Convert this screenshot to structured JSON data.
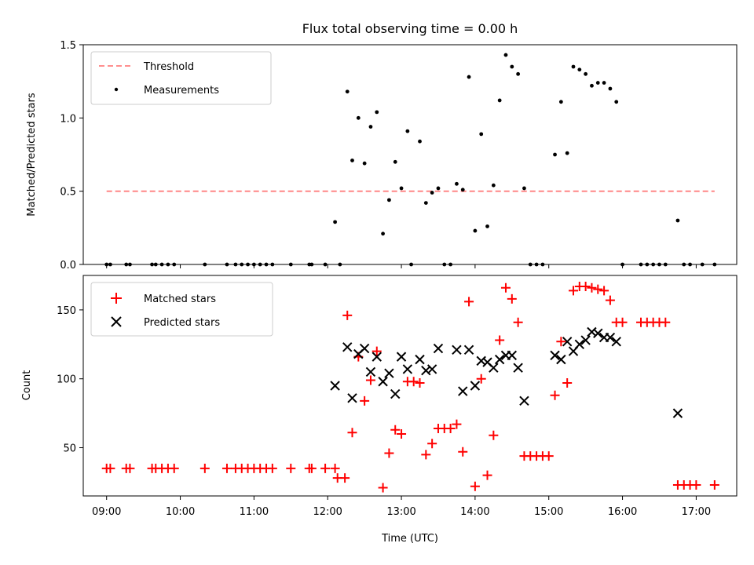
{
  "chart_data": [
    {
      "type": "scatter",
      "title": "Flux total observing time = 0.00 h",
      "xlabel": "",
      "ylabel": "Matched/Predicted stars",
      "ylim": [
        0,
        1.5
      ],
      "yticks": [
        "0.0",
        "0.5",
        "1.0",
        "1.5"
      ],
      "xtick_labels_visible": false,
      "legend_position": "top-left",
      "legend": [
        "Threshold",
        "Measurements"
      ],
      "colors": {
        "threshold": "#ff7f7f",
        "measurements": "#000000"
      },
      "threshold": {
        "name": "Threshold",
        "value": 0.5,
        "x_start": "09:00",
        "x_end": "17:15"
      },
      "series": [
        {
          "name": "Measurements",
          "points": [
            [
              "09:00",
              0
            ],
            [
              "09:03",
              0
            ],
            [
              "09:16",
              0
            ],
            [
              "09:19",
              0
            ],
            [
              "09:37",
              0
            ],
            [
              "09:40",
              0
            ],
            [
              "09:45",
              0
            ],
            [
              "09:50",
              0
            ],
            [
              "09:55",
              0
            ],
            [
              "10:20",
              0
            ],
            [
              "10:38",
              0
            ],
            [
              "10:45",
              0
            ],
            [
              "10:50",
              0
            ],
            [
              "10:55",
              0
            ],
            [
              "11:00",
              0
            ],
            [
              "11:05",
              0
            ],
            [
              "11:10",
              0
            ],
            [
              "11:15",
              0
            ],
            [
              "11:30",
              0
            ],
            [
              "11:45",
              0
            ],
            [
              "11:47",
              0
            ],
            [
              "11:58",
              0
            ],
            [
              "12:06",
              0.29
            ],
            [
              "12:10",
              0
            ],
            [
              "12:16",
              1.18
            ],
            [
              "12:20",
              0.71
            ],
            [
              "12:25",
              1.0
            ],
            [
              "12:30",
              0.69
            ],
            [
              "12:35",
              0.94
            ],
            [
              "12:40",
              1.04
            ],
            [
              "12:45",
              0.21
            ],
            [
              "12:50",
              0.44
            ],
            [
              "12:55",
              0.7
            ],
            [
              "13:00",
              0.52
            ],
            [
              "13:05",
              0.91
            ],
            [
              "13:08",
              0
            ],
            [
              "13:15",
              0.84
            ],
            [
              "13:20",
              0.42
            ],
            [
              "13:25",
              0.49
            ],
            [
              "13:30",
              0.52
            ],
            [
              "13:35",
              0
            ],
            [
              "13:40",
              0
            ],
            [
              "13:45",
              0.55
            ],
            [
              "13:50",
              0.51
            ],
            [
              "13:55",
              1.28
            ],
            [
              "14:00",
              0.23
            ],
            [
              "14:05",
              0.89
            ],
            [
              "14:10",
              0.26
            ],
            [
              "14:15",
              0.54
            ],
            [
              "14:20",
              1.12
            ],
            [
              "14:25",
              1.43
            ],
            [
              "14:30",
              1.35
            ],
            [
              "14:35",
              1.3
            ],
            [
              "14:40",
              0.52
            ],
            [
              "14:45",
              0
            ],
            [
              "14:50",
              0
            ],
            [
              "14:55",
              0
            ],
            [
              "15:05",
              0.75
            ],
            [
              "15:10",
              1.11
            ],
            [
              "15:15",
              0.76
            ],
            [
              "15:20",
              1.35
            ],
            [
              "15:25",
              1.33
            ],
            [
              "15:30",
              1.3
            ],
            [
              "15:35",
              1.22
            ],
            [
              "15:40",
              1.24
            ],
            [
              "15:45",
              1.24
            ],
            [
              "15:50",
              1.2
            ],
            [
              "15:55",
              1.11
            ],
            [
              "16:00",
              0
            ],
            [
              "16:15",
              0
            ],
            [
              "16:20",
              0
            ],
            [
              "16:25",
              0
            ],
            [
              "16:30",
              0
            ],
            [
              "16:35",
              0
            ],
            [
              "16:45",
              0.3
            ],
            [
              "16:50",
              0
            ],
            [
              "16:55",
              0
            ],
            [
              "17:05",
              0
            ],
            [
              "17:15",
              0
            ]
          ]
        }
      ]
    },
    {
      "type": "scatter",
      "title": "",
      "xlabel": "Time (UTC)",
      "ylabel": "Count",
      "ylim": [
        15,
        175
      ],
      "yticks": [
        "50",
        "100",
        "150"
      ],
      "xticks": [
        "09:00",
        "10:00",
        "11:00",
        "12:00",
        "13:00",
        "14:00",
        "15:00",
        "16:00",
        "17:00"
      ],
      "legend_position": "top-left",
      "legend": [
        "Matched stars",
        "Predicted stars"
      ],
      "colors": {
        "matched": "#ff0000",
        "predicted": "#000000"
      },
      "series": [
        {
          "name": "Matched stars",
          "points": [
            [
              "09:00",
              35
            ],
            [
              "09:03",
              35
            ],
            [
              "09:16",
              35
            ],
            [
              "09:19",
              35
            ],
            [
              "09:37",
              35
            ],
            [
              "09:40",
              35
            ],
            [
              "09:45",
              35
            ],
            [
              "09:50",
              35
            ],
            [
              "09:55",
              35
            ],
            [
              "10:20",
              35
            ],
            [
              "10:38",
              35
            ],
            [
              "10:45",
              35
            ],
            [
              "10:50",
              35
            ],
            [
              "10:55",
              35
            ],
            [
              "11:00",
              35
            ],
            [
              "11:05",
              35
            ],
            [
              "11:10",
              35
            ],
            [
              "11:15",
              35
            ],
            [
              "11:30",
              35
            ],
            [
              "11:45",
              35
            ],
            [
              "11:47",
              35
            ],
            [
              "11:58",
              35
            ],
            [
              "12:06",
              35
            ],
            [
              "12:08",
              28
            ],
            [
              "12:14",
              28
            ],
            [
              "12:16",
              146
            ],
            [
              "12:20",
              61
            ],
            [
              "12:25",
              116
            ],
            [
              "12:30",
              84
            ],
            [
              "12:35",
              99
            ],
            [
              "12:40",
              120
            ],
            [
              "12:45",
              21
            ],
            [
              "12:50",
              46
            ],
            [
              "12:55",
              63
            ],
            [
              "13:00",
              60
            ],
            [
              "13:05",
              98
            ],
            [
              "13:10",
              98
            ],
            [
              "13:15",
              97
            ],
            [
              "13:20",
              45
            ],
            [
              "13:25",
              53
            ],
            [
              "13:30",
              64
            ],
            [
              "13:35",
              64
            ],
            [
              "13:40",
              64
            ],
            [
              "13:45",
              67
            ],
            [
              "13:50",
              47
            ],
            [
              "13:55",
              156
            ],
            [
              "14:00",
              22
            ],
            [
              "14:05",
              100
            ],
            [
              "14:10",
              30
            ],
            [
              "14:15",
              59
            ],
            [
              "14:20",
              128
            ],
            [
              "14:25",
              166
            ],
            [
              "14:30",
              158
            ],
            [
              "14:35",
              141
            ],
            [
              "14:40",
              44
            ],
            [
              "14:45",
              44
            ],
            [
              "14:50",
              44
            ],
            [
              "14:55",
              44
            ],
            [
              "15:00",
              44
            ],
            [
              "15:05",
              88
            ],
            [
              "15:10",
              127
            ],
            [
              "15:15",
              97
            ],
            [
              "15:20",
              164
            ],
            [
              "15:25",
              167
            ],
            [
              "15:30",
              167
            ],
            [
              "15:35",
              166
            ],
            [
              "15:40",
              165
            ],
            [
              "15:45",
              164
            ],
            [
              "15:50",
              157
            ],
            [
              "15:55",
              141
            ],
            [
              "16:00",
              141
            ],
            [
              "16:15",
              141
            ],
            [
              "16:20",
              141
            ],
            [
              "16:25",
              141
            ],
            [
              "16:30",
              141
            ],
            [
              "16:35",
              141
            ],
            [
              "16:45",
              23
            ],
            [
              "16:50",
              23
            ],
            [
              "16:55",
              23
            ],
            [
              "17:00",
              23
            ],
            [
              "17:15",
              23
            ]
          ]
        },
        {
          "name": "Predicted stars",
          "points": [
            [
              "12:06",
              95
            ],
            [
              "12:16",
              123
            ],
            [
              "12:20",
              86
            ],
            [
              "12:25",
              118
            ],
            [
              "12:30",
              122
            ],
            [
              "12:35",
              105
            ],
            [
              "12:40",
              116
            ],
            [
              "12:45",
              98
            ],
            [
              "12:50",
              104
            ],
            [
              "12:55",
              89
            ],
            [
              "13:00",
              116
            ],
            [
              "13:05",
              107
            ],
            [
              "13:15",
              114
            ],
            [
              "13:20",
              106
            ],
            [
              "13:25",
              107
            ],
            [
              "13:30",
              122
            ],
            [
              "13:45",
              121
            ],
            [
              "13:50",
              91
            ],
            [
              "13:55",
              121
            ],
            [
              "14:00",
              95
            ],
            [
              "14:05",
              113
            ],
            [
              "14:10",
              112
            ],
            [
              "14:15",
              108
            ],
            [
              "14:20",
              114
            ],
            [
              "14:25",
              117
            ],
            [
              "14:30",
              117
            ],
            [
              "14:35",
              108
            ],
            [
              "14:40",
              84
            ],
            [
              "15:05",
              117
            ],
            [
              "15:10",
              114
            ],
            [
              "15:15",
              127
            ],
            [
              "15:20",
              120
            ],
            [
              "15:25",
              125
            ],
            [
              "15:30",
              128
            ],
            [
              "15:35",
              134
            ],
            [
              "15:40",
              133
            ],
            [
              "15:45",
              130
            ],
            [
              "15:50",
              130
            ],
            [
              "15:55",
              127
            ],
            [
              "16:45",
              75
            ]
          ]
        }
      ]
    }
  ]
}
